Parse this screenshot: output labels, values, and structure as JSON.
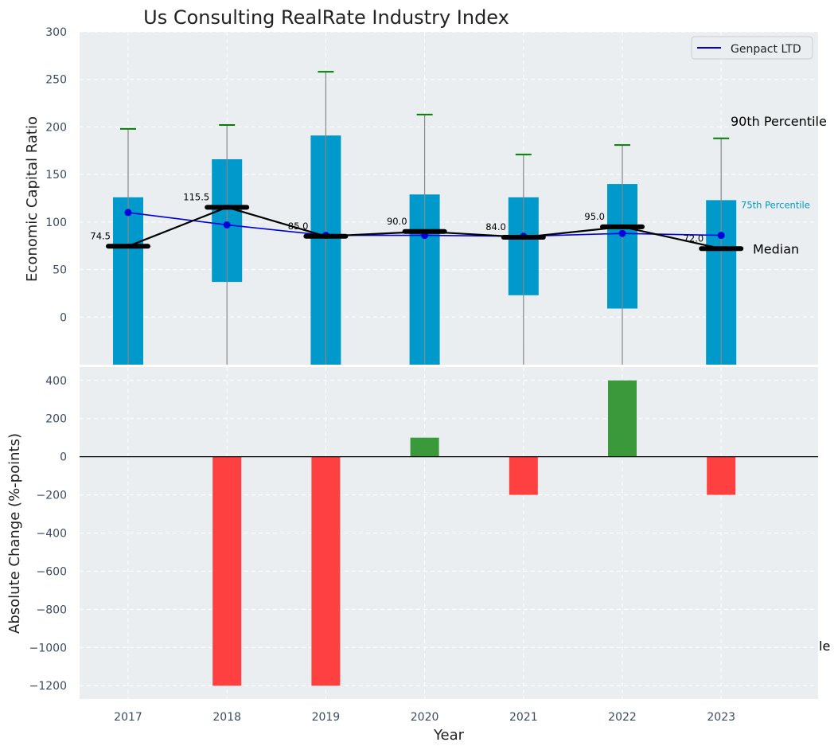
{
  "chart_data": [
    {
      "panel": "top",
      "type": "bar",
      "title": "Us Consulting RealRate Industry Index",
      "xlabel": "",
      "ylabel": "Economic Capital Ratio",
      "ylim": [
        -50,
        300
      ],
      "yticks": [
        0,
        50,
        100,
        150,
        200,
        250,
        300
      ],
      "grid": true,
      "legend": {
        "position": "top-right",
        "entries": [
          "Genpact LTD"
        ]
      },
      "categories": [
        "2017",
        "2018",
        "2019",
        "2020",
        "2021",
        "2022",
        "2023"
      ],
      "series": [
        {
          "name": "Percentile band low",
          "values": [
            -50,
            37,
            -50,
            -50,
            23,
            9,
            -50
          ]
        },
        {
          "name": "75th Percentile",
          "values": [
            126,
            166,
            191,
            129,
            126,
            140,
            123
          ]
        },
        {
          "name": "90th Percentile",
          "values": [
            198,
            202,
            258,
            213,
            171,
            181,
            188
          ]
        },
        {
          "name": "Median",
          "values": [
            74.5,
            115.5,
            85.0,
            90.0,
            84.0,
            95.0,
            72.0
          ]
        },
        {
          "name": "Genpact LTD",
          "values": [
            110,
            97,
            86,
            86,
            85,
            88,
            86
          ]
        }
      ],
      "median_labels": [
        "74.5",
        "115.5",
        "85.0",
        "90.0",
        "84.0",
        "95.0",
        "72.0"
      ],
      "annotations": {
        "p90": "90th Percentile",
        "p75": "75th Percentile",
        "median": "Median"
      },
      "colors": {
        "bar": "#0099cc",
        "median": "#000000",
        "company": "#0000dd",
        "whisker": "#008000",
        "background": "#eaeef0"
      }
    },
    {
      "panel": "bottom",
      "type": "bar",
      "title": "",
      "xlabel": "Year",
      "ylabel": "Absolute Change (%-points)",
      "ylim": [
        -1270,
        470
      ],
      "yticks": [
        -1200,
        -1000,
        -800,
        -600,
        -400,
        -200,
        0,
        200,
        400
      ],
      "grid": true,
      "categories": [
        "2017",
        "2018",
        "2019",
        "2020",
        "2021",
        "2022",
        "2023"
      ],
      "values": [
        0,
        -1200,
        -1200,
        100,
        -200,
        400,
        -200
      ],
      "edge_label": "le",
      "colors": {
        "positive": "#3a9a3a",
        "negative": "#ff4040"
      }
    }
  ]
}
